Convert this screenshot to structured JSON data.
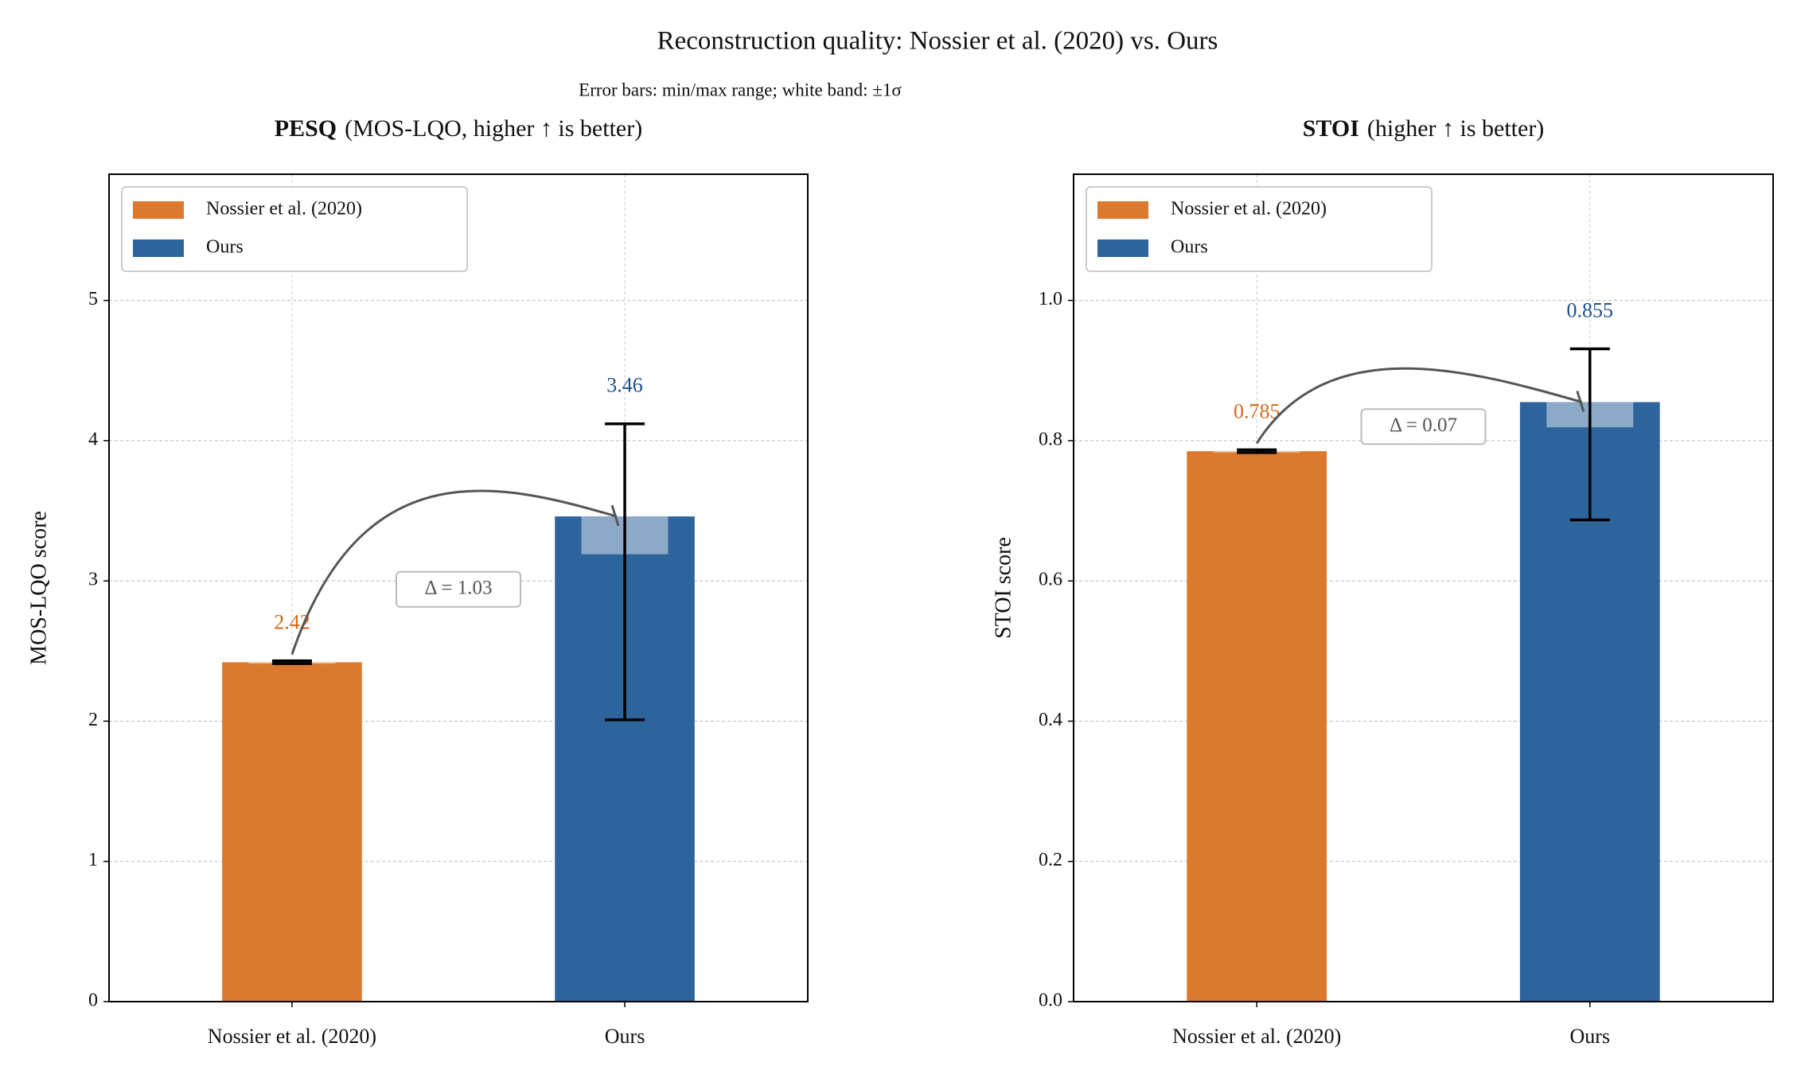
{
  "suptitle": "Reconstruction quality: Nossier et al. (2020) vs. Ours",
  "note": "Error bars: min/max range; white band: ±1σ",
  "chart_data": [
    {
      "type": "bar",
      "title_bold": "PESQ",
      "title": "(MOS-LQO, higher ↑ is better)",
      "ylabel": "MOS-LQO score",
      "categories": [
        "Nossier et al. (2020)",
        "Ours"
      ],
      "values": [
        2.42,
        3.46
      ],
      "err_min": [
        2.41,
        2.01
      ],
      "err_max": [
        2.43,
        4.12
      ],
      "std": [
        0.01,
        0.27
      ],
      "colors": [
        "#db7a2e",
        "#2e649c"
      ],
      "label_colors": [
        "#d4691c",
        "#1d4f8c"
      ],
      "legend": [
        "Nossier et al. (2020)",
        "Ours"
      ],
      "legend_loc": "upper left",
      "annotation": "Δ = 1.03",
      "ylim": [
        0,
        5.9
      ],
      "yticks": [
        0,
        1,
        2,
        3,
        4,
        5
      ],
      "grid": true
    },
    {
      "type": "bar",
      "title_bold": "STOI",
      "title": "(higher ↑ is better)",
      "ylabel": "STOI score",
      "categories": [
        "Nossier et al. (2020)",
        "Ours"
      ],
      "values": [
        0.785,
        0.855
      ],
      "err_min": [
        0.783,
        0.687
      ],
      "err_max": [
        0.787,
        0.931
      ],
      "std": [
        0.002,
        0.036
      ],
      "colors": [
        "#db7a2e",
        "#2e649c"
      ],
      "label_colors": [
        "#d4691c",
        "#1d4f8c"
      ],
      "legend": [
        "Nossier et al. (2020)",
        "Ours"
      ],
      "legend_loc": "upper left",
      "annotation": "Δ = 0.07",
      "ylim": [
        0,
        1.18
      ],
      "yticks": [
        {
          "value": 0,
          "label": "0.0"
        },
        0.2,
        0.4,
        0.6,
        0.8,
        {
          "value": 1,
          "label": "1.0"
        }
      ],
      "grid": true
    }
  ]
}
